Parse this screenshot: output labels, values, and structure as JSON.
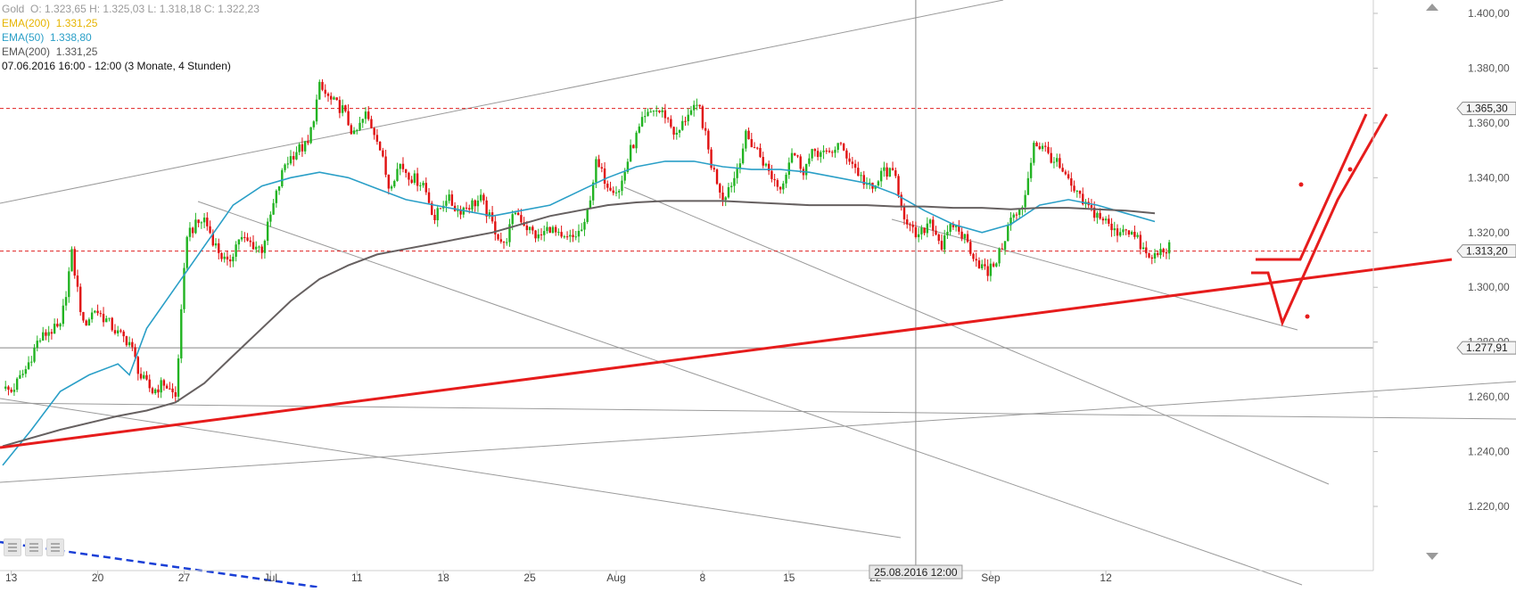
{
  "legend": {
    "instrument": "Gold",
    "ohlc": "O: 1.323,65  H: 1.325,03  L: 1.318,18  C: 1.322,23",
    "ema200_a": {
      "label": "EMA(200)",
      "value": "1.331,25"
    },
    "ema50": {
      "label": "EMA(50)",
      "value": "1.338,80"
    },
    "ema200_b": {
      "label": "EMA(200)",
      "value": "1.331,25"
    },
    "period": "07.06.2016 16:00 - 12:00 (3 Monate, 4 Stunden)"
  },
  "colors": {
    "up": "#22b322",
    "down": "#e01010",
    "ema50": "#2a9fc7",
    "ema200": "#666060",
    "trend": "#e61c1c",
    "level": "#e02020",
    "gridline": "#9a9a9a"
  },
  "icons": [
    "scroll-up-icon",
    "scroll-down-icon",
    "toolbar-icon"
  ],
  "chart_data": {
    "type": "candlestick",
    "ylim": [
      1215,
      1405
    ],
    "yticks": [
      "1.400,00",
      "1.380,00",
      "1.360,00",
      "1.340,00",
      "1.320,00",
      "1.300,00",
      "1.280,00",
      "1.260,00",
      "1.240,00",
      "1.220,00"
    ],
    "ytick_values": [
      1400,
      1380,
      1360,
      1340,
      1320,
      1300,
      1280,
      1260,
      1240,
      1220
    ],
    "xticks": [
      {
        "label": "13",
        "bar": 3
      },
      {
        "label": "20",
        "bar": 33
      },
      {
        "label": "27",
        "bar": 63
      },
      {
        "label": "Jul",
        "bar": 93
      },
      {
        "label": "11",
        "bar": 123
      },
      {
        "label": "18",
        "bar": 153
      },
      {
        "label": "25",
        "bar": 183
      },
      {
        "label": "Aug",
        "bar": 213
      },
      {
        "label": "8",
        "bar": 243
      },
      {
        "label": "15",
        "bar": 273
      },
      {
        "label": "22",
        "bar": 303
      },
      {
        "label": "Sep",
        "bar": 343
      },
      {
        "label": "12",
        "bar": 383
      }
    ],
    "price_labels": [
      {
        "text": "1.365,30",
        "value": 1365.3
      },
      {
        "text": "1.313,20",
        "value": 1313.2
      },
      {
        "text": "1.277,91",
        "value": 1277.91
      }
    ],
    "crosshair": {
      "label": "25.08.2016 12:00",
      "bar": 317
    },
    "close_anchors": [
      [
        0,
        1263
      ],
      [
        3,
        1262
      ],
      [
        8,
        1270
      ],
      [
        12,
        1280
      ],
      [
        16,
        1284
      ],
      [
        20,
        1285
      ],
      [
        24,
        1312
      ],
      [
        28,
        1286
      ],
      [
        32,
        1292
      ],
      [
        36,
        1288
      ],
      [
        40,
        1283
      ],
      [
        44,
        1280
      ],
      [
        48,
        1267
      ],
      [
        52,
        1262
      ],
      [
        56,
        1265
      ],
      [
        60,
        1260
      ],
      [
        64,
        1320
      ],
      [
        70,
        1325
      ],
      [
        74,
        1315
      ],
      [
        78,
        1308
      ],
      [
        82,
        1318
      ],
      [
        86,
        1316
      ],
      [
        90,
        1314
      ],
      [
        94,
        1330
      ],
      [
        98,
        1345
      ],
      [
        102,
        1350
      ],
      [
        106,
        1352
      ],
      [
        110,
        1373
      ],
      [
        114,
        1368
      ],
      [
        118,
        1365
      ],
      [
        122,
        1355
      ],
      [
        126,
        1363
      ],
      [
        130,
        1355
      ],
      [
        134,
        1337
      ],
      [
        138,
        1345
      ],
      [
        142,
        1340
      ],
      [
        146,
        1338
      ],
      [
        150,
        1325
      ],
      [
        154,
        1333
      ],
      [
        158,
        1328
      ],
      [
        162,
        1330
      ],
      [
        166,
        1332
      ],
      [
        170,
        1323
      ],
      [
        174,
        1315
      ],
      [
        178,
        1328
      ],
      [
        182,
        1322
      ],
      [
        186,
        1318
      ],
      [
        190,
        1322
      ],
      [
        194,
        1317
      ],
      [
        198,
        1318
      ],
      [
        202,
        1322
      ],
      [
        206,
        1345
      ],
      [
        210,
        1338
      ],
      [
        214,
        1335
      ],
      [
        218,
        1350
      ],
      [
        222,
        1360
      ],
      [
        226,
        1365
      ],
      [
        230,
        1363
      ],
      [
        234,
        1355
      ],
      [
        238,
        1364
      ],
      [
        242,
        1365
      ],
      [
        246,
        1345
      ],
      [
        250,
        1333
      ],
      [
        254,
        1340
      ],
      [
        258,
        1355
      ],
      [
        262,
        1350
      ],
      [
        266,
        1342
      ],
      [
        270,
        1336
      ],
      [
        274,
        1350
      ],
      [
        278,
        1343
      ],
      [
        282,
        1350
      ],
      [
        286,
        1348
      ],
      [
        290,
        1352
      ],
      [
        294,
        1347
      ],
      [
        298,
        1340
      ],
      [
        302,
        1335
      ],
      [
        306,
        1343
      ],
      [
        310,
        1340
      ],
      [
        314,
        1322
      ],
      [
        318,
        1318
      ],
      [
        322,
        1325
      ],
      [
        326,
        1315
      ],
      [
        330,
        1323
      ],
      [
        334,
        1318
      ],
      [
        338,
        1310
      ],
      [
        342,
        1305
      ],
      [
        346,
        1312
      ],
      [
        350,
        1325
      ],
      [
        354,
        1328
      ],
      [
        358,
        1353
      ],
      [
        362,
        1350
      ],
      [
        366,
        1345
      ],
      [
        370,
        1338
      ],
      [
        374,
        1332
      ],
      [
        378,
        1328
      ],
      [
        382,
        1325
      ],
      [
        386,
        1320
      ],
      [
        390,
        1322
      ],
      [
        394,
        1317
      ],
      [
        398,
        1310
      ],
      [
        402,
        1313
      ],
      [
        405,
        1315
      ]
    ],
    "ema50_path": [
      [
        0,
        1235
      ],
      [
        10,
        1248
      ],
      [
        20,
        1262
      ],
      [
        30,
        1268
      ],
      [
        40,
        1272
      ],
      [
        44,
        1268
      ],
      [
        50,
        1285
      ],
      [
        60,
        1300
      ],
      [
        70,
        1315
      ],
      [
        80,
        1330
      ],
      [
        90,
        1337
      ],
      [
        100,
        1340
      ],
      [
        110,
        1342
      ],
      [
        120,
        1340
      ],
      [
        130,
        1336
      ],
      [
        140,
        1332
      ],
      [
        150,
        1330
      ],
      [
        160,
        1328
      ],
      [
        170,
        1326
      ],
      [
        180,
        1328
      ],
      [
        190,
        1330
      ],
      [
        200,
        1335
      ],
      [
        210,
        1340
      ],
      [
        220,
        1344
      ],
      [
        230,
        1346
      ],
      [
        240,
        1346
      ],
      [
        250,
        1344
      ],
      [
        260,
        1343
      ],
      [
        270,
        1343
      ],
      [
        280,
        1342
      ],
      [
        290,
        1340
      ],
      [
        300,
        1338
      ],
      [
        310,
        1334
      ],
      [
        320,
        1328
      ],
      [
        330,
        1323
      ],
      [
        340,
        1320
      ],
      [
        350,
        1323
      ],
      [
        360,
        1330
      ],
      [
        370,
        1332
      ],
      [
        380,
        1330
      ],
      [
        390,
        1327
      ],
      [
        400,
        1324
      ]
    ],
    "ema200_path": [
      [
        0,
        1242
      ],
      [
        20,
        1248
      ],
      [
        40,
        1253
      ],
      [
        50,
        1255
      ],
      [
        60,
        1258
      ],
      [
        70,
        1265
      ],
      [
        80,
        1275
      ],
      [
        90,
        1285
      ],
      [
        100,
        1295
      ],
      [
        110,
        1303
      ],
      [
        120,
        1308
      ],
      [
        130,
        1312
      ],
      [
        140,
        1314
      ],
      [
        150,
        1316
      ],
      [
        160,
        1318
      ],
      [
        170,
        1320
      ],
      [
        180,
        1323
      ],
      [
        190,
        1326
      ],
      [
        200,
        1328
      ],
      [
        210,
        1330
      ],
      [
        220,
        1331
      ],
      [
        230,
        1331.5
      ],
      [
        240,
        1331.5
      ],
      [
        250,
        1331.5
      ],
      [
        260,
        1331
      ],
      [
        270,
        1330.5
      ],
      [
        280,
        1330
      ],
      [
        290,
        1330
      ],
      [
        300,
        1330
      ],
      [
        310,
        1329.5
      ],
      [
        320,
        1329.5
      ],
      [
        330,
        1329
      ],
      [
        340,
        1329
      ],
      [
        350,
        1328.5
      ],
      [
        360,
        1329
      ],
      [
        370,
        1329
      ],
      [
        380,
        1328.5
      ],
      [
        390,
        1328
      ],
      [
        400,
        1327
      ]
    ]
  }
}
